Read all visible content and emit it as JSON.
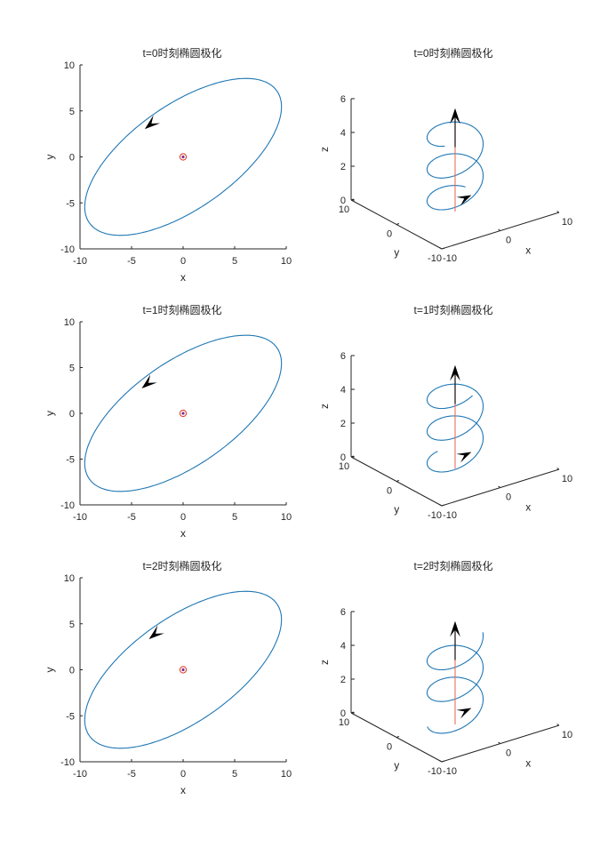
{
  "colors": {
    "curve": "#1f77b4",
    "field_vector": "#000000",
    "axis_line": "#e8715a",
    "origin_ring": "#e0301e",
    "origin_dot": "#7e2f8e",
    "axes": "#262626"
  },
  "chart_data": [
    {
      "type": "line",
      "title": "t=0时刻椭圆极化",
      "xlabel": "x",
      "ylabel": "y",
      "xlim": [
        -10,
        10
      ],
      "ylim": [
        -10,
        10
      ],
      "xticks": [
        "-10",
        "-5",
        "0",
        "5",
        "10"
      ],
      "yticks": [
        "-10",
        "-5",
        "0",
        "5",
        "10"
      ],
      "ellipse": {
        "semi_major": 11.6,
        "semi_minor": 5.4,
        "tilt_deg": 40
      },
      "arrow_at": [
        -3.2,
        3.5
      ],
      "t": 0
    },
    {
      "type": "line",
      "title": "t=0时刻椭圆极化",
      "xlabel": "x",
      "ylabel": "y",
      "zlabel": "z",
      "xlim": [
        -10,
        10
      ],
      "ylim": [
        -10,
        10
      ],
      "zlim": [
        0,
        6
      ],
      "xticks": [
        "-10",
        "0",
        "10"
      ],
      "yticks": [
        "-10",
        "0",
        "10"
      ],
      "zticks": [
        "0",
        "2",
        "4",
        "6"
      ],
      "helix": {
        "z_range": [
          0,
          4.7
        ],
        "turns": 2.5,
        "phase_deg": 0
      },
      "t": 0
    },
    {
      "type": "line",
      "title": "t=1时刻椭圆极化",
      "xlabel": "x",
      "ylabel": "y",
      "xlim": [
        -10,
        10
      ],
      "ylim": [
        -10,
        10
      ],
      "xticks": [
        "-10",
        "-5",
        "0",
        "5",
        "10"
      ],
      "yticks": [
        "-10",
        "-5",
        "0",
        "5",
        "10"
      ],
      "ellipse": {
        "semi_major": 11.6,
        "semi_minor": 5.4,
        "tilt_deg": 40
      },
      "arrow_at": [
        -3.5,
        3.2
      ],
      "t": 1
    },
    {
      "type": "line",
      "title": "t=1时刻椭圆极化",
      "xlabel": "x",
      "ylabel": "y",
      "zlabel": "z",
      "xlim": [
        -10,
        10
      ],
      "ylim": [
        -10,
        10
      ],
      "zlim": [
        0,
        6
      ],
      "xticks": [
        "-10",
        "0",
        "10"
      ],
      "yticks": [
        "-10",
        "0",
        "10"
      ],
      "zticks": [
        "0",
        "2",
        "4",
        "6"
      ],
      "helix": {
        "z_range": [
          0,
          4.7
        ],
        "turns": 2.5,
        "phase_deg": 60
      },
      "t": 1
    },
    {
      "type": "line",
      "title": "t=2时刻椭圆极化",
      "xlabel": "x",
      "ylabel": "y",
      "xlim": [
        -10,
        10
      ],
      "ylim": [
        -10,
        10
      ],
      "xticks": [
        "-10",
        "-5",
        "0",
        "5",
        "10"
      ],
      "yticks": [
        "-10",
        "-5",
        "0",
        "5",
        "10"
      ],
      "ellipse": {
        "semi_major": 11.6,
        "semi_minor": 5.4,
        "tilt_deg": 40
      },
      "arrow_at": [
        -2.8,
        3.8
      ],
      "t": 2
    },
    {
      "type": "line",
      "title": "t=2时刻椭圆极化",
      "xlabel": "x",
      "ylabel": "y",
      "zlabel": "z",
      "xlim": [
        -10,
        10
      ],
      "ylim": [
        -10,
        10
      ],
      "zlim": [
        0,
        6
      ],
      "xticks": [
        "-10",
        "0",
        "10"
      ],
      "yticks": [
        "-10",
        "0",
        "10"
      ],
      "zticks": [
        "0",
        "2",
        "4",
        "6"
      ],
      "helix": {
        "z_range": [
          0,
          4.7
        ],
        "turns": 2.5,
        "phase_deg": 120
      },
      "t": 2
    }
  ]
}
